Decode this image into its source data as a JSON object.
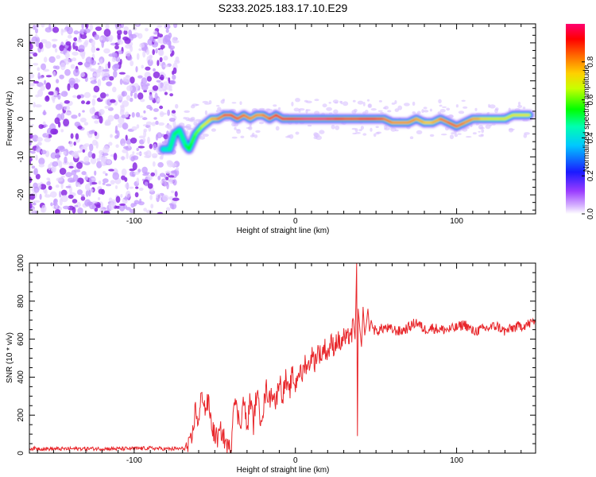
{
  "title": "S233.2025.183.17.10.E29",
  "colors": {
    "snr_line": "#e8262a",
    "track_core": "#e8262a",
    "noise": "#8a2be2",
    "colorbar_stops": [
      "#ff0080",
      "#ff0000",
      "#ff8000",
      "#ffff00",
      "#00ff00",
      "#00ffff",
      "#0000ff",
      "#c8a0ff",
      "#ffffff"
    ]
  },
  "chart_data": [
    {
      "type": "heatmap",
      "xlabel": "Height of straight line (km)",
      "ylabel": "Frequency (Hz)",
      "xlim": [
        -165,
        149
      ],
      "ylim": [
        -25,
        25
      ],
      "x_ticks": [
        -100,
        0,
        100
      ],
      "x_tick_labels": [
        "-100",
        "0",
        "100"
      ],
      "y_ticks": [
        -20,
        -10,
        0,
        10,
        20
      ],
      "y_tick_labels": [
        "-20",
        "-10",
        "0",
        "10",
        "20"
      ],
      "colorbar": {
        "label": "Normalized spectral amplitude",
        "range": [
          0,
          1
        ],
        "ticks": [
          0.0,
          0.2,
          0.4,
          0.6,
          0.8
        ],
        "tick_labels": [
          "0.0",
          "0.2",
          "0.4",
          "0.6",
          "0.8"
        ]
      },
      "noise_region_x": [
        -165,
        -78
      ],
      "track": {
        "x": [
          -82,
          -78,
          -75,
          -72,
          -70,
          -68,
          -66,
          -64,
          -62,
          -60,
          -58,
          -55,
          -52,
          -48,
          -44,
          -40,
          -36,
          -32,
          -28,
          -24,
          -20,
          -16,
          -12,
          -8,
          -4,
          0,
          5,
          10,
          15,
          20,
          25,
          30,
          35,
          40,
          45,
          50,
          55,
          60,
          65,
          70,
          75,
          80,
          85,
          90,
          95,
          100,
          105,
          110,
          115,
          120,
          125,
          130,
          135,
          140,
          145
        ],
        "y": [
          -8,
          -8,
          -4,
          -3,
          -5,
          -7,
          -8,
          -6,
          -4,
          -3,
          -2,
          -1,
          0,
          0,
          1,
          1,
          0,
          1,
          0,
          1,
          1,
          0,
          1,
          0,
          0,
          0,
          0,
          0,
          0,
          0,
          0,
          0,
          0,
          0,
          0,
          0,
          0,
          -1,
          -1,
          -1,
          0,
          -1,
          -1,
          0,
          -1,
          -2,
          -1,
          0,
          0,
          0,
          0,
          0,
          1,
          1,
          1
        ],
        "amplitude": [
          0.4,
          0.45,
          0.5,
          0.5,
          0.45,
          0.5,
          0.55,
          0.55,
          0.6,
          0.6,
          0.65,
          0.7,
          0.75,
          0.8,
          0.85,
          0.9,
          0.85,
          0.85,
          0.8,
          0.8,
          0.8,
          0.85,
          0.9,
          0.9,
          0.9,
          0.95,
          1.0,
          1.0,
          1.0,
          1.0,
          0.95,
          0.9,
          0.85,
          0.9,
          0.95,
          0.9,
          0.85,
          0.8,
          0.8,
          0.8,
          0.8,
          0.75,
          0.75,
          0.8,
          0.85,
          0.85,
          0.8,
          0.8,
          0.75,
          0.7,
          0.7,
          0.7,
          0.7,
          0.7,
          0.7
        ]
      }
    },
    {
      "type": "line",
      "xlabel": "Height of straight line (km)",
      "ylabel": "SNR (10 * v/v)",
      "xlim": [
        -165,
        149
      ],
      "ylim": [
        0,
        1000
      ],
      "x_ticks": [
        -100,
        0,
        100
      ],
      "x_tick_labels": [
        "-100",
        "0",
        "100"
      ],
      "y_ticks": [
        0,
        200,
        400,
        600,
        800,
        1000
      ],
      "y_tick_labels": [
        "0",
        "200",
        "400",
        "600",
        "800",
        "1000"
      ],
      "series": [
        {
          "x": [
            -165,
            -150,
            -130,
            -110,
            -90,
            -78,
            -70,
            -66,
            -64,
            -62,
            -60,
            -58,
            -56,
            -54,
            -52,
            -50,
            -48,
            -46,
            -44,
            -42,
            -40,
            -38,
            -36,
            -34,
            -32,
            -30,
            -28,
            -26,
            -24,
            -22,
            -20,
            -18,
            -16,
            -14,
            -12,
            -10,
            -8,
            -6,
            -4,
            -2,
            0,
            2,
            4,
            6,
            8,
            10,
            12,
            14,
            16,
            18,
            20,
            22,
            24,
            26,
            28,
            30,
            32,
            34,
            35,
            36,
            37,
            37.5,
            38,
            38.5,
            39,
            40,
            41,
            42,
            43,
            44,
            45,
            46,
            47,
            48,
            50,
            55,
            60,
            65,
            70,
            75,
            80,
            85,
            90,
            95,
            100,
            105,
            110,
            115,
            120,
            125,
            130,
            135,
            140,
            145,
            149
          ],
          "y": [
            25,
            22,
            24,
            23,
            26,
            22,
            24,
            30,
            80,
            240,
            150,
            330,
            230,
            270,
            150,
            90,
            80,
            120,
            70,
            30,
            15,
            320,
            200,
            160,
            290,
            110,
            300,
            150,
            330,
            190,
            230,
            340,
            280,
            330,
            260,
            400,
            300,
            390,
            300,
            420,
            350,
            440,
            400,
            480,
            450,
            520,
            480,
            540,
            510,
            560,
            520,
            580,
            560,
            600,
            570,
            610,
            590,
            640,
            620,
            700,
            600,
            780,
            1000,
            90,
            760,
            650,
            560,
            770,
            620,
            680,
            760,
            640,
            700,
            660,
            640,
            660,
            650,
            640,
            660,
            690,
            650,
            660,
            650,
            650,
            660,
            680,
            640,
            650,
            660,
            670,
            640,
            660,
            670,
            680,
            700
          ]
        }
      ]
    }
  ]
}
